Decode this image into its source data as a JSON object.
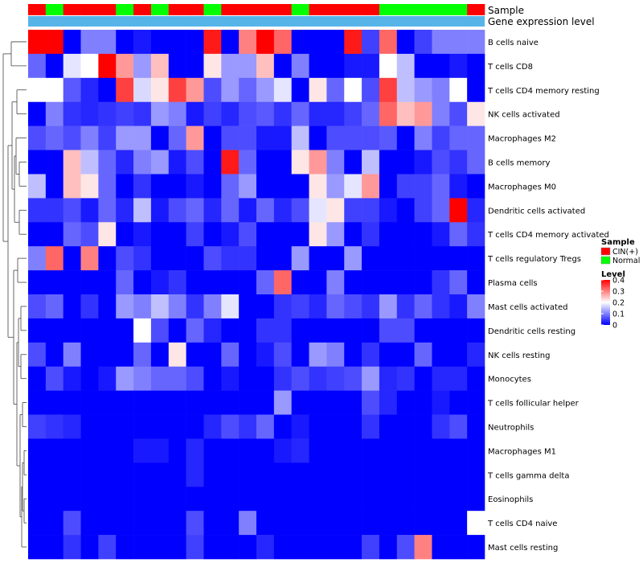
{
  "chart_data": {
    "type": "heatmap",
    "title": "",
    "annotation_tracks": {
      "sample_label": "Sample",
      "gene_label": "Gene expression level",
      "gene_color": "#56B4E9",
      "sample_groups": [
        "C",
        "N",
        "C",
        "C",
        "C",
        "N",
        "C",
        "N",
        "C",
        "C",
        "N",
        "C",
        "C",
        "C",
        "C",
        "N",
        "C",
        "C",
        "C",
        "C",
        "N",
        "N",
        "N",
        "N",
        "N",
        "C"
      ]
    },
    "legend": {
      "sample_title": "Sample",
      "sample_items": [
        {
          "name": "CIN(+)",
          "color": "#FF0000"
        },
        {
          "name": "Normal",
          "color": "#00FF00"
        }
      ],
      "level_title": "Level",
      "level_ticks": [
        "0.4",
        "0.3",
        "0.2",
        "0.1",
        "0"
      ],
      "tick_values": [
        0.4,
        0.3,
        0.2,
        0.1,
        0
      ],
      "colors": {
        "low": "#0000FF",
        "mid": "#FFFFFF",
        "high": "#FF0000"
      },
      "range": [
        0,
        0.4
      ]
    },
    "rows": [
      "B cells naive",
      "T cells CD8",
      "T cells CD4 memory resting",
      "NK cells activated",
      "Macrophages M2",
      "B cells memory",
      "Macrophages M0",
      "Dendritic cells activated",
      "T cells CD4 memory activated",
      "T cells regulatory  Tregs",
      "Plasma cells",
      "Mast cells activated",
      "Dendritic cells resting",
      "NK cells resting",
      "Monocytes",
      "T cells follicular helper",
      "Neutrophils",
      "Macrophages M1",
      "T cells gamma delta",
      "Eosinophils",
      "T cells CD4 naive",
      "Mast cells resting"
    ],
    "n_columns": 26,
    "values": [
      [
        0.4,
        0.4,
        0,
        0.1,
        0.1,
        0,
        0.02,
        0,
        0,
        0,
        0.38,
        0,
        0.3,
        0.4,
        0.32,
        0,
        0,
        0,
        0.38,
        0.05,
        0.32,
        0,
        0.05,
        0.1,
        0.1,
        0.1
      ],
      [
        0.08,
        0,
        0.18,
        0.2,
        0.4,
        0.28,
        0.12,
        0.25,
        0,
        0,
        0.22,
        0.12,
        0.12,
        0.25,
        0,
        0.1,
        0,
        0,
        0.02,
        0.02,
        0.2,
        0.15,
        0,
        0,
        0.02,
        0
      ],
      [
        0.2,
        0.2,
        0.07,
        0.03,
        0,
        0.35,
        0.17,
        0.22,
        0.35,
        0.28,
        0.06,
        0.12,
        0.08,
        0.12,
        0.18,
        0,
        0.22,
        0.08,
        0.2,
        0.06,
        0.35,
        0.15,
        0.12,
        0.1,
        0.2,
        0
      ],
      [
        0,
        0.1,
        0.04,
        0.03,
        0.04,
        0.05,
        0.04,
        0.12,
        0.1,
        0.02,
        0.05,
        0.03,
        0.06,
        0.07,
        0.04,
        0.08,
        0.03,
        0.03,
        0.05,
        0.08,
        0.32,
        0.25,
        0.28,
        0.1,
        0.06,
        0.22
      ],
      [
        0.06,
        0.08,
        0.06,
        0.1,
        0.05,
        0.12,
        0.12,
        0,
        0.08,
        0.28,
        0,
        0.06,
        0.06,
        0.02,
        0.02,
        0.15,
        0,
        0.06,
        0.06,
        0.06,
        0.07,
        0,
        0.1,
        0.05,
        0.08,
        0.08
      ],
      [
        0,
        0,
        0.25,
        0.15,
        0.08,
        0.03,
        0.1,
        0.12,
        0.02,
        0.06,
        0,
        0.38,
        0.08,
        0,
        0,
        0.22,
        0.28,
        0.1,
        0,
        0.15,
        0,
        0,
        0.02,
        0.06,
        0.04,
        0.08
      ],
      [
        0.15,
        0,
        0.25,
        0.22,
        0.08,
        0,
        0.04,
        0,
        0,
        0.02,
        0,
        0.08,
        0.12,
        0,
        0,
        0,
        0.22,
        0.12,
        0.18,
        0.28,
        0,
        0.05,
        0.05,
        0.08,
        0.02,
        0
      ],
      [
        0.04,
        0.04,
        0.06,
        0.02,
        0.08,
        0.03,
        0.15,
        0.02,
        0.06,
        0.08,
        0.03,
        0.08,
        0.02,
        0.08,
        0.03,
        0.06,
        0.18,
        0.22,
        0.05,
        0.05,
        0.02,
        0,
        0.05,
        0.08,
        0.4,
        0.03
      ],
      [
        0,
        0,
        0.08,
        0.06,
        0.22,
        0,
        0.02,
        0,
        0,
        0.05,
        0,
        0.02,
        0.06,
        0,
        0,
        0,
        0.22,
        0.12,
        0,
        0.04,
        0,
        0,
        0,
        0.02,
        0.08,
        0.04
      ],
      [
        0.1,
        0.32,
        0,
        0.3,
        0,
        0.06,
        0.04,
        0,
        0,
        0,
        0.06,
        0.04,
        0.04,
        0,
        0,
        0.12,
        0,
        0,
        0.12,
        0,
        0,
        0,
        0,
        0,
        0,
        0
      ],
      [
        0,
        0,
        0,
        0,
        0,
        0.08,
        0,
        0.02,
        0.04,
        0,
        0,
        0,
        0,
        0.08,
        0.32,
        0,
        0,
        0.1,
        0,
        0,
        0,
        0,
        0,
        0.04,
        0.08,
        0
      ],
      [
        0.06,
        0.08,
        0,
        0.04,
        0,
        0.12,
        0.1,
        0.15,
        0.1,
        0.04,
        0.1,
        0.18,
        0,
        0,
        0.04,
        0.05,
        0.03,
        0.08,
        0.06,
        0.04,
        0.12,
        0.04,
        0.08,
        0.04,
        0.02,
        0.1
      ],
      [
        0,
        0,
        0,
        0,
        0,
        0,
        0.2,
        0.06,
        0,
        0.08,
        0.03,
        0,
        0,
        0.04,
        0.04,
        0,
        0,
        0,
        0,
        0,
        0.06,
        0.06,
        0,
        0,
        0,
        0
      ],
      [
        0.06,
        0,
        0.1,
        0,
        0,
        0,
        0.08,
        0,
        0.22,
        0,
        0,
        0.08,
        0,
        0.02,
        0.06,
        0,
        0.12,
        0.1,
        0,
        0.04,
        0,
        0,
        0.08,
        0,
        0,
        0.03
      ],
      [
        0,
        0.06,
        0.02,
        0,
        0.02,
        0.12,
        0.1,
        0.08,
        0.08,
        0.06,
        0,
        0.02,
        0,
        0,
        0.04,
        0.06,
        0.04,
        0.05,
        0.06,
        0.12,
        0.03,
        0.04,
        0,
        0.03,
        0.03,
        0
      ],
      [
        0,
        0,
        0,
        0,
        0,
        0,
        0,
        0,
        0,
        0,
        0,
        0,
        0,
        0,
        0.12,
        0,
        0,
        0,
        0,
        0.06,
        0.03,
        0,
        0,
        0.02,
        0,
        0
      ],
      [
        0.05,
        0.04,
        0.03,
        0,
        0,
        0,
        0,
        0,
        0,
        0,
        0.03,
        0.06,
        0.04,
        0.08,
        0,
        0.02,
        0,
        0,
        0,
        0.04,
        0,
        0,
        0,
        0.04,
        0.06,
        0
      ],
      [
        0,
        0,
        0,
        0,
        0,
        0,
        0.02,
        0.02,
        0,
        0.03,
        0,
        0,
        0,
        0,
        0.02,
        0.03,
        0,
        0,
        0,
        0,
        0,
        0,
        0,
        0,
        0,
        0
      ],
      [
        0,
        0,
        0,
        0,
        0,
        0,
        0,
        0,
        0,
        0.03,
        0,
        0,
        0,
        0,
        0,
        0,
        0,
        0,
        0,
        0,
        0,
        0,
        0,
        0,
        0,
        0
      ],
      [
        0,
        0,
        0,
        0,
        0,
        0,
        0,
        0,
        0,
        0,
        0,
        0,
        0,
        0,
        0,
        0,
        0,
        0,
        0,
        0,
        0,
        0,
        0,
        0,
        0,
        0
      ],
      [
        0,
        0,
        0.06,
        0,
        0,
        0,
        0,
        0,
        0,
        0.06,
        0,
        0,
        0.1,
        0,
        0,
        0,
        0,
        0,
        0,
        0,
        0,
        0,
        0,
        0,
        0,
        0.2
      ],
      [
        0,
        0,
        0.04,
        0,
        0.05,
        0,
        0,
        0,
        0,
        0.05,
        0,
        0,
        0,
        0.03,
        0,
        0,
        0,
        0,
        0,
        0.05,
        0,
        0.06,
        0.3,
        0,
        0,
        0
      ]
    ]
  }
}
